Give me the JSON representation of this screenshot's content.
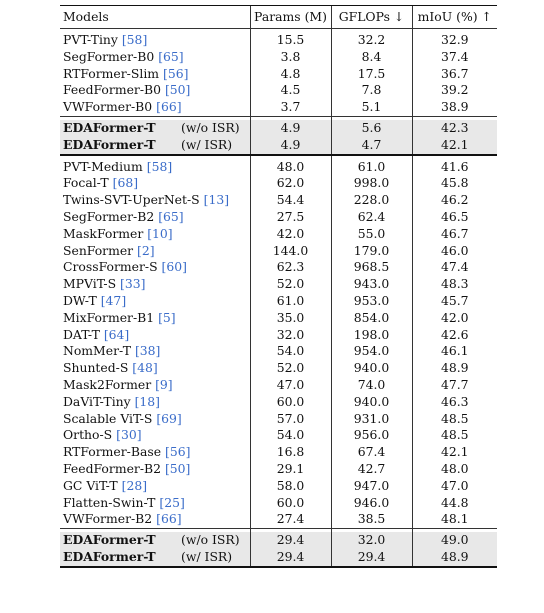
{
  "header": {
    "models": "Models",
    "params": "Params (M)",
    "gflops": "GFLOPs ↓",
    "miou": "mIoU (%) ↑"
  },
  "small": [
    {
      "name": "PVT-Tiny ",
      "ref": "[58]",
      "params": "15.5",
      "gflops": "32.2",
      "miou": "32.9"
    },
    {
      "name": "SegFormer-B0 ",
      "ref": "[65]",
      "params": "3.8",
      "gflops": "8.4",
      "miou": "37.4"
    },
    {
      "name": "RTFormer-Slim ",
      "ref": "[56]",
      "params": "4.8",
      "gflops": "17.5",
      "miou": "36.7"
    },
    {
      "name": "FeedFormer-B0 ",
      "ref": "[50]",
      "params": "4.5",
      "gflops": "7.8",
      "miou": "39.2"
    },
    {
      "name": "VWFormer-B0 ",
      "ref": "[66]",
      "params": "3.7",
      "gflops": "5.1",
      "miou": "38.9"
    }
  ],
  "ours_small": [
    {
      "name": "EDAFormer-T",
      "variant": "(w/o ISR)",
      "params": "4.9",
      "gflops": "5.6",
      "miou": "42.3"
    },
    {
      "name": "EDAFormer-T",
      "variant": "(w/  ISR)",
      "params": "4.9",
      "gflops": "4.7",
      "miou": "42.1"
    }
  ],
  "large": [
    {
      "name": "PVT-Medium ",
      "ref": "[58]",
      "params": "48.0",
      "gflops": "61.0",
      "miou": "41.6"
    },
    {
      "name": "Focal-T ",
      "ref": "[68]",
      "params": "62.0",
      "gflops": "998.0",
      "miou": "45.8"
    },
    {
      "name": "Twins-SVT-UperNet-S ",
      "ref": "[13]",
      "params": "54.4",
      "gflops": "228.0",
      "miou": "46.2"
    },
    {
      "name": "SegFormer-B2 ",
      "ref": "[65]",
      "params": "27.5",
      "gflops": "62.4",
      "miou": "46.5"
    },
    {
      "name": "MaskFormer ",
      "ref": "[10]",
      "params": "42.0",
      "gflops": "55.0",
      "miou": "46.7"
    },
    {
      "name": "SenFormer ",
      "ref": "[2]",
      "params": "144.0",
      "gflops": "179.0",
      "miou": "46.0"
    },
    {
      "name": "CrossFormer-S ",
      "ref": "[60]",
      "params": "62.3",
      "gflops": "968.5",
      "miou": "47.4"
    },
    {
      "name": "MPViT-S ",
      "ref": "[33]",
      "params": "52.0",
      "gflops": "943.0",
      "miou": "48.3"
    },
    {
      "name": "DW-T ",
      "ref": "[47]",
      "params": "61.0",
      "gflops": "953.0",
      "miou": "45.7"
    },
    {
      "name": "MixFormer-B1 ",
      "ref": "[5]",
      "params": "35.0",
      "gflops": "854.0",
      "miou": "42.0"
    },
    {
      "name": "DAT-T ",
      "ref": "[64]",
      "params": "32.0",
      "gflops": "198.0",
      "miou": "42.6"
    },
    {
      "name": "NomMer-T ",
      "ref": "[38]",
      "params": "54.0",
      "gflops": "954.0",
      "miou": "46.1"
    },
    {
      "name": "Shunted-S ",
      "ref": "[48]",
      "params": "52.0",
      "gflops": "940.0",
      "miou": "48.9"
    },
    {
      "name": "Mask2Former ",
      "ref": "[9]",
      "params": "47.0",
      "gflops": "74.0",
      "miou": "47.7"
    },
    {
      "name": "DaViT-Tiny ",
      "ref": "[18]",
      "params": "60.0",
      "gflops": "940.0",
      "miou": "46.3"
    },
    {
      "name": "Scalable ViT-S ",
      "ref": "[69]",
      "params": "57.0",
      "gflops": "931.0",
      "miou": "48.5"
    },
    {
      "name": "Ortho-S ",
      "ref": "[30]",
      "params": "54.0",
      "gflops": "956.0",
      "miou": "48.5"
    },
    {
      "name": "RTFormer-Base ",
      "ref": "[56]",
      "params": "16.8",
      "gflops": "67.4",
      "miou": "42.1"
    },
    {
      "name": "FeedFormer-B2 ",
      "ref": "[50]",
      "params": "29.1",
      "gflops": "42.7",
      "miou": "48.0"
    },
    {
      "name": "GC ViT-T ",
      "ref": "[28]",
      "params": "58.0",
      "gflops": "947.0",
      "miou": "47.0"
    },
    {
      "name": "Flatten-Swin-T ",
      "ref": "[25]",
      "params": "60.0",
      "gflops": "946.0",
      "miou": "44.8"
    },
    {
      "name": "VWFormer-B2 ",
      "ref": "[66]",
      "params": "27.4",
      "gflops": "38.5",
      "miou": "48.1"
    }
  ],
  "ours_large": [
    {
      "name": "EDAFormer-T",
      "variant": "(w/o ISR)",
      "params": "29.4",
      "gflops": "32.0",
      "miou": "49.0"
    },
    {
      "name": "EDAFormer-T",
      "variant": "(w/  ISR)",
      "params": "29.4",
      "gflops": "29.4",
      "miou": "48.9"
    }
  ]
}
